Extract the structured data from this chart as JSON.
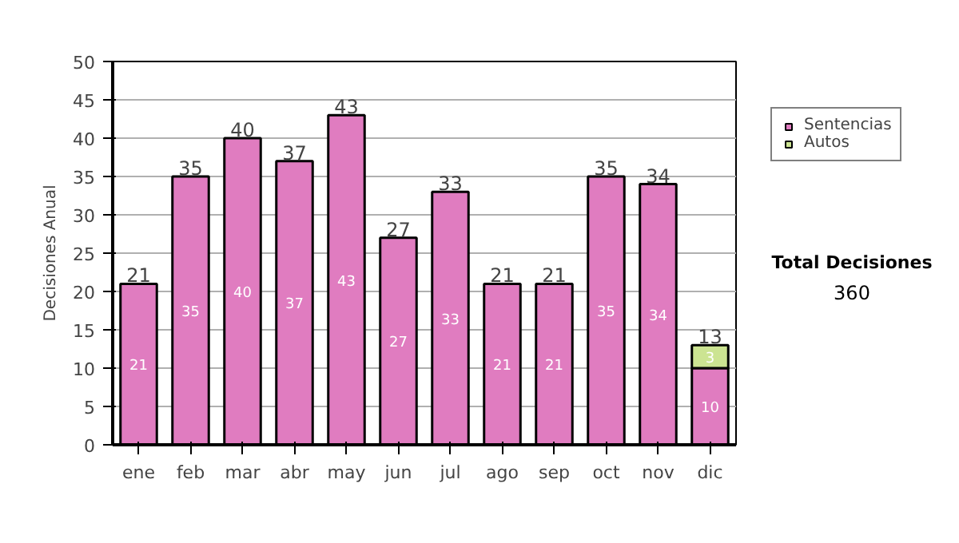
{
  "chart_data": {
    "type": "bar",
    "stacked": true,
    "ylabel": "Decisiones Anual",
    "categories": [
      "ene",
      "feb",
      "mar",
      "abr",
      "may",
      "jun",
      "jul",
      "ago",
      "sep",
      "oct",
      "nov",
      "dic"
    ],
    "series": [
      {
        "name": "Sentencias",
        "color": "#e07cc0",
        "values": [
          21,
          35,
          40,
          37,
          43,
          27,
          33,
          21,
          21,
          35,
          34,
          10
        ]
      },
      {
        "name": "Autos",
        "color": "#cce492",
        "values": [
          null,
          null,
          null,
          null,
          null,
          null,
          null,
          null,
          null,
          null,
          null,
          3
        ]
      }
    ],
    "totals": [
      "21",
      "35",
      "40",
      "37",
      "43",
      "27",
      "33",
      "21",
      "21",
      "35",
      "34",
      "13"
    ],
    "data_labels": true,
    "ylim": [
      0,
      50
    ],
    "yticks": [
      0,
      5,
      10,
      15,
      20,
      25,
      30,
      35,
      40,
      45,
      50
    ],
    "grid": "y",
    "legend": "right",
    "annotations": [
      "Total Decisiones",
      "360"
    ]
  }
}
